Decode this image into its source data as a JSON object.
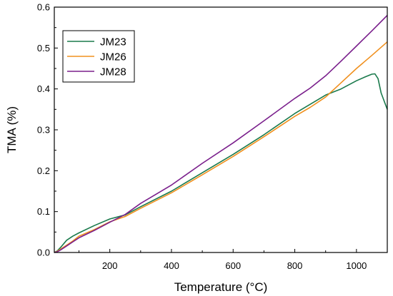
{
  "chart_data": {
    "type": "line",
    "title": "",
    "xlabel": "Temperature (°C)",
    "ylabel": "TMA (%)",
    "xlim": [
      20,
      1100
    ],
    "ylim": [
      0,
      0.6
    ],
    "xticks": [
      200,
      400,
      600,
      800,
      1000
    ],
    "yticks": [
      0.0,
      0.1,
      0.2,
      0.3,
      0.4,
      0.5,
      0.6
    ],
    "xtick_labels": [
      "200",
      "400",
      "600",
      "800",
      "1000"
    ],
    "ytick_labels": [
      "0.0",
      "0.1",
      "0.2",
      "0.3",
      "0.4",
      "0.5",
      "0.6"
    ],
    "grid": false,
    "legend_position": "top-left",
    "series": [
      {
        "name": "JM23",
        "color": "#1a7a4c",
        "x": [
          20,
          30,
          40,
          60,
          80,
          100,
          150,
          200,
          250,
          300,
          400,
          500,
          600,
          700,
          800,
          900,
          950,
          1000,
          1030,
          1050,
          1060,
          1070,
          1080,
          1090,
          1100
        ],
        "y": [
          0.0,
          0.004,
          0.012,
          0.03,
          0.04,
          0.048,
          0.066,
          0.082,
          0.092,
          0.112,
          0.15,
          0.195,
          0.24,
          0.288,
          0.34,
          0.385,
          0.4,
          0.42,
          0.43,
          0.436,
          0.437,
          0.425,
          0.39,
          0.37,
          0.35
        ]
      },
      {
        "name": "JM26",
        "color": "#f0901e",
        "x": [
          20,
          30,
          40,
          60,
          80,
          100,
          150,
          200,
          250,
          300,
          400,
          500,
          600,
          700,
          800,
          850,
          900,
          950,
          1000,
          1050,
          1100
        ],
        "y": [
          0.0,
          0.003,
          0.008,
          0.018,
          0.028,
          0.04,
          0.056,
          0.075,
          0.088,
          0.108,
          0.146,
          0.19,
          0.235,
          0.283,
          0.333,
          0.355,
          0.38,
          0.415,
          0.45,
          0.482,
          0.515
        ]
      },
      {
        "name": "JM28",
        "color": "#7a1f8c",
        "x": [
          20,
          30,
          40,
          60,
          80,
          100,
          150,
          200,
          250,
          300,
          400,
          500,
          600,
          700,
          800,
          850,
          900,
          950,
          1000,
          1050,
          1100
        ],
        "y": [
          0.0,
          0.002,
          0.006,
          0.016,
          0.026,
          0.036,
          0.054,
          0.074,
          0.093,
          0.12,
          0.165,
          0.218,
          0.268,
          0.322,
          0.377,
          0.402,
          0.432,
          0.468,
          0.505,
          0.542,
          0.58
        ]
      }
    ]
  }
}
